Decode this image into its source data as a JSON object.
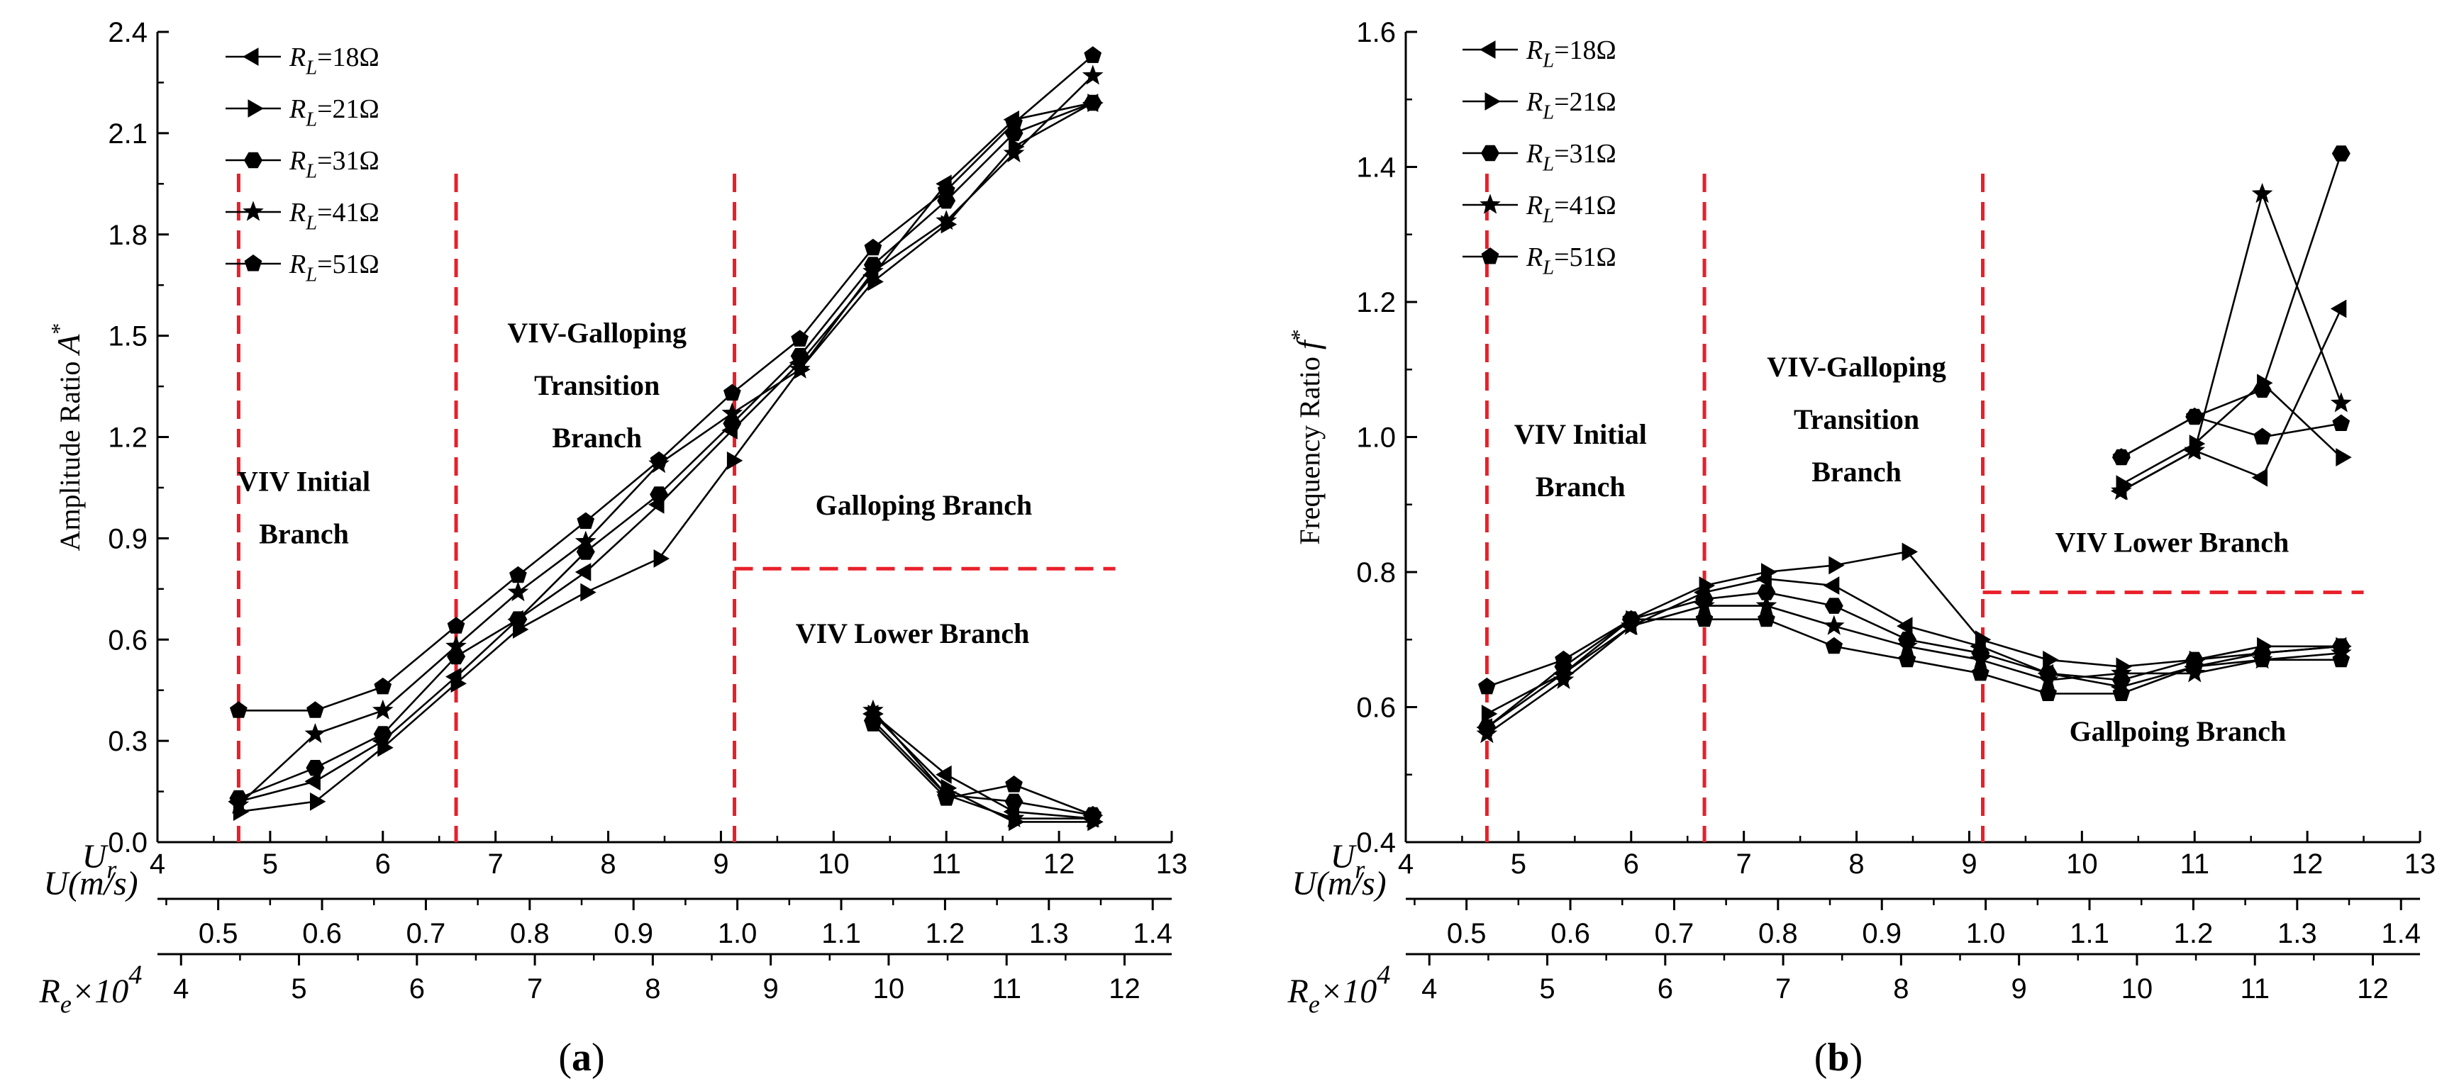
{
  "chart_data": [
    {
      "type": "line",
      "panel_label": "(a)",
      "ylabel": "Amplitude Ratio",
      "ylabel_symbol": "A*",
      "ylim": [
        0.0,
        2.4
      ],
      "yticks": [
        "0.0",
        "0.3",
        "0.6",
        "0.9",
        "1.2",
        "1.5",
        "1.8",
        "2.1",
        "2.4"
      ],
      "x_axes": [
        {
          "name": "Ur",
          "display": "U_r",
          "range": [
            4,
            13
          ],
          "ticks": [
            "4",
            "5",
            "6",
            "7",
            "8",
            "9",
            "10",
            "11",
            "12",
            "13"
          ]
        },
        {
          "name": "U(m/s)",
          "display": "U(m/s)",
          "range": [
            0.4415,
            1.4183
          ],
          "ticks": [
            "0.5",
            "0.6",
            "0.7",
            "0.8",
            "0.9",
            "1.0",
            "1.1",
            "1.2",
            "1.3",
            "1.4"
          ]
        },
        {
          "name": "Re×10^4",
          "display": "R_e×10^4",
          "range": [
            3.8,
            12.4
          ],
          "ticks": [
            "4",
            "5",
            "6",
            "7",
            "8",
            "9",
            "10",
            "11",
            "12"
          ]
        }
      ],
      "dividers_x": [
        4.72,
        6.65,
        9.12
      ],
      "horizontal_divider": {
        "y": 0.81,
        "x_from": 9.12,
        "x_to": 12.5
      },
      "regions": [
        {
          "lines": [
            "VIV Initial",
            "Branch"
          ],
          "x": 5.3,
          "y": 1.04
        },
        {
          "lines": [
            "VIV-Galloping",
            "Transition",
            "Branch"
          ],
          "x": 7.9,
          "y": 1.48
        },
        {
          "lines": [
            "Galloping  Branch"
          ],
          "x": 10.8,
          "y": 0.97
        },
        {
          "lines": [
            "VIV Lower Branch"
          ],
          "x": 10.7,
          "y": 0.59
        }
      ],
      "series": [
        {
          "name": "RL=18Ω",
          "marker": "triangle-left",
          "segments": [
            {
              "x": [
                4.72,
                5.4,
                6.0,
                6.65,
                7.2,
                7.8,
                8.45,
                9.1,
                9.7,
                10.35,
                11.0,
                11.6,
                12.3
              ],
              "y": [
                0.12,
                0.18,
                0.3,
                0.49,
                0.66,
                0.8,
                1.0,
                1.22,
                1.42,
                1.68,
                1.95,
                2.14,
                2.19
              ]
            },
            {
              "x": [
                10.35,
                11.0,
                11.6,
                12.3
              ],
              "y": [
                0.38,
                0.2,
                0.09,
                0.07
              ]
            }
          ]
        },
        {
          "name": "RL=21Ω",
          "marker": "triangle-right",
          "segments": [
            {
              "x": [
                4.72,
                5.4,
                6.0,
                6.65,
                7.2,
                7.8,
                8.45,
                9.1,
                9.7,
                10.35,
                11.0,
                11.6,
                12.3
              ],
              "y": [
                0.09,
                0.12,
                0.28,
                0.47,
                0.63,
                0.74,
                0.84,
                1.13,
                1.4,
                1.66,
                1.83,
                2.06,
                2.19
              ]
            },
            {
              "x": [
                10.35,
                11.0,
                11.6,
                12.3
              ],
              "y": [
                0.38,
                0.16,
                0.06,
                0.06
              ]
            }
          ]
        },
        {
          "name": "RL=31Ω",
          "marker": "hexagon",
          "segments": [
            {
              "x": [
                4.72,
                5.4,
                6.0,
                6.65,
                7.2,
                7.8,
                8.45,
                9.1,
                9.7,
                10.35,
                11.0,
                11.6,
                12.3
              ],
              "y": [
                0.13,
                0.22,
                0.32,
                0.55,
                0.66,
                0.86,
                1.03,
                1.24,
                1.44,
                1.71,
                1.9,
                2.1,
                2.19
              ]
            },
            {
              "x": [
                10.35,
                11.0,
                11.6,
                12.3
              ],
              "y": [
                0.36,
                0.14,
                0.12,
                0.08
              ]
            }
          ]
        },
        {
          "name": "RL=41Ω",
          "marker": "star",
          "segments": [
            {
              "x": [
                4.72,
                5.4,
                6.0,
                6.65,
                7.2,
                7.8,
                8.45,
                9.1,
                9.7,
                10.35,
                11.0,
                11.6,
                12.3
              ],
              "y": [
                0.11,
                0.32,
                0.39,
                0.58,
                0.74,
                0.89,
                1.12,
                1.27,
                1.4,
                1.69,
                1.84,
                2.04,
                2.27
              ]
            },
            {
              "x": [
                10.35,
                11.0,
                11.6,
                12.3
              ],
              "y": [
                0.39,
                0.14,
                0.07,
                0.07
              ]
            }
          ]
        },
        {
          "name": "RL=51Ω",
          "marker": "pentagon",
          "segments": [
            {
              "x": [
                4.72,
                5.4,
                6.0,
                6.65,
                7.2,
                7.8,
                8.45,
                9.1,
                9.7,
                10.35,
                11.0,
                11.6,
                12.3
              ],
              "y": [
                0.39,
                0.39,
                0.46,
                0.64,
                0.79,
                0.95,
                1.13,
                1.33,
                1.49,
                1.76,
                1.93,
                2.13,
                2.33
              ]
            },
            {
              "x": [
                10.35,
                11.0,
                11.6,
                12.3
              ],
              "y": [
                0.35,
                0.13,
                0.17,
                0.08
              ]
            }
          ]
        }
      ]
    },
    {
      "type": "line",
      "panel_label": "(b)",
      "ylabel": "Frequency Ratio",
      "ylabel_symbol": "f*",
      "ylim": [
        0.4,
        1.6
      ],
      "yticks": [
        "0.4",
        "0.6",
        "0.8",
        "1.0",
        "1.2",
        "1.4",
        "1.6"
      ],
      "x_axes": [
        {
          "name": "Ur",
          "display": "U_r",
          "range": [
            4,
            13
          ],
          "ticks": [
            "4",
            "5",
            "6",
            "7",
            "8",
            "9",
            "10",
            "11",
            "12",
            "13"
          ]
        },
        {
          "name": "U(m/s)",
          "display": "U(m/s)",
          "range": [
            0.4415,
            1.4183
          ],
          "ticks": [
            "0.5",
            "0.6",
            "0.7",
            "0.8",
            "0.9",
            "1.0",
            "1.1",
            "1.2",
            "1.3",
            "1.4"
          ]
        },
        {
          "name": "Re×10^4",
          "display": "R_e×10^4",
          "range": [
            3.8,
            12.4
          ],
          "ticks": [
            "4",
            "5",
            "6",
            "7",
            "8",
            "9",
            "10",
            "11",
            "12"
          ]
        }
      ],
      "dividers_x": [
        4.72,
        6.65,
        9.12
      ],
      "horizontal_divider": {
        "y": 0.77,
        "x_from": 9.12,
        "x_to": 12.5
      },
      "regions": [
        {
          "lines": [
            "VIV Initial",
            "Branch"
          ],
          "x": 5.55,
          "y": 0.99
        },
        {
          "lines": [
            "VIV-Galloping",
            "Transition",
            "Branch"
          ],
          "x": 8.0,
          "y": 1.09
        },
        {
          "lines": [
            "VIV Lower  Branch"
          ],
          "x": 10.8,
          "y": 0.83
        },
        {
          "lines": [
            "Gallpoing  Branch"
          ],
          "x": 10.85,
          "y": 0.55
        }
      ],
      "series": [
        {
          "name": "RL=18Ω",
          "marker": "triangle-left",
          "segments": [
            {
              "x": [
                4.72,
                5.4,
                6.0,
                6.65,
                7.2,
                7.8,
                8.45,
                9.1,
                9.7,
                10.35,
                11.0,
                11.6,
                12.3
              ],
              "y": [
                0.57,
                0.65,
                0.72,
                0.77,
                0.79,
                0.78,
                0.72,
                0.69,
                0.65,
                0.63,
                0.66,
                0.68,
                0.69
              ]
            },
            {
              "x": [
                10.35,
                11.0,
                11.6,
                12.3
              ],
              "y": [
                0.92,
                0.98,
                0.94,
                1.19
              ]
            }
          ]
        },
        {
          "name": "RL=21Ω",
          "marker": "triangle-right",
          "segments": [
            {
              "x": [
                4.72,
                5.4,
                6.0,
                6.65,
                7.2,
                7.8,
                8.45,
                9.1,
                9.7,
                10.35,
                11.0,
                11.6,
                12.3
              ],
              "y": [
                0.59,
                0.65,
                0.73,
                0.78,
                0.8,
                0.81,
                0.83,
                0.7,
                0.67,
                0.66,
                0.67,
                0.69,
                0.69
              ]
            },
            {
              "x": [
                10.35,
                11.0,
                11.6,
                12.3
              ],
              "y": [
                0.93,
                0.99,
                1.08,
                0.97
              ]
            }
          ]
        },
        {
          "name": "RL=31Ω",
          "marker": "hexagon",
          "segments": [
            {
              "x": [
                4.72,
                5.4,
                6.0,
                6.65,
                7.2,
                7.8,
                8.45,
                9.1,
                9.7,
                10.35,
                11.0,
                11.6,
                12.3
              ],
              "y": [
                0.57,
                0.66,
                0.73,
                0.76,
                0.77,
                0.75,
                0.7,
                0.68,
                0.65,
                0.64,
                0.67,
                0.68,
                0.69
              ]
            },
            {
              "x": [
                10.35,
                11.0,
                11.6,
                12.3
              ],
              "y": [
                0.97,
                1.03,
                1.07,
                1.42
              ]
            }
          ]
        },
        {
          "name": "RL=41Ω",
          "marker": "star",
          "segments": [
            {
              "x": [
                4.72,
                5.4,
                6.0,
                6.65,
                7.2,
                7.8,
                8.45,
                9.1,
                9.7,
                10.35,
                11.0,
                11.6,
                12.3
              ],
              "y": [
                0.56,
                0.64,
                0.72,
                0.75,
                0.75,
                0.72,
                0.69,
                0.67,
                0.64,
                0.65,
                0.65,
                0.67,
                0.68
              ]
            },
            {
              "x": [
                10.35,
                11.0,
                11.6,
                12.3
              ],
              "y": [
                0.92,
                0.98,
                1.36,
                1.05
              ]
            }
          ]
        },
        {
          "name": "RL=51Ω",
          "marker": "pentagon",
          "segments": [
            {
              "x": [
                4.72,
                5.4,
                6.0,
                6.65,
                7.2,
                7.8,
                8.45,
                9.1,
                9.7,
                10.35,
                11.0,
                11.6,
                12.3
              ],
              "y": [
                0.63,
                0.67,
                0.73,
                0.73,
                0.73,
                0.69,
                0.67,
                0.65,
                0.62,
                0.62,
                0.66,
                0.67,
                0.67
              ]
            },
            {
              "x": [
                10.35,
                11.0,
                11.6,
                12.3
              ],
              "y": [
                0.97,
                1.03,
                1.0,
                1.02
              ]
            }
          ]
        }
      ]
    }
  ]
}
